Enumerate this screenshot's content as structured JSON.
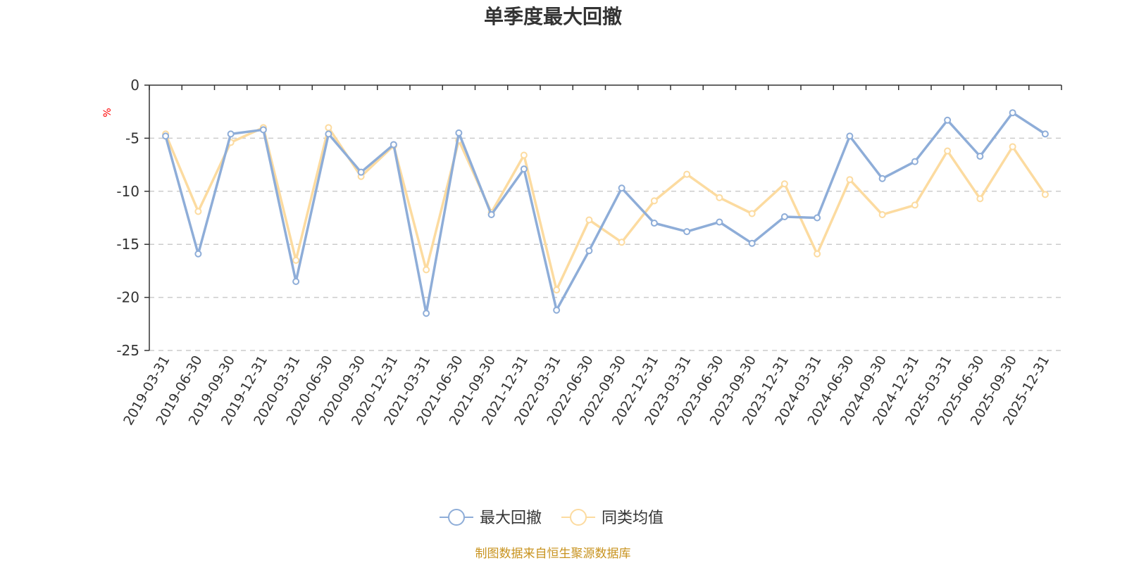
{
  "chart_data": {
    "type": "line",
    "title": "单季度最大回撤",
    "ylabel": "%",
    "ylim": [
      -25,
      0
    ],
    "yticks": [
      0,
      -5,
      -10,
      -15,
      -20,
      -25
    ],
    "grid": "horizontal-dashed",
    "legend_position": "bottom-center",
    "categories": [
      "2019-03-31",
      "2019-06-30",
      "2019-09-30",
      "2019-12-31",
      "2020-03-31",
      "2020-06-30",
      "2020-09-30",
      "2020-12-31",
      "2021-03-31",
      "2021-06-30",
      "2021-09-30",
      "2021-12-31",
      "2022-03-31",
      "2022-06-30",
      "2022-09-30",
      "2022-12-31",
      "2023-03-31",
      "2023-06-30",
      "2023-09-30",
      "2023-12-31",
      "2024-03-31",
      "2024-06-30",
      "2024-09-30",
      "2024-12-31",
      "2025-03-31",
      "2025-06-30",
      "2025-09-30",
      "2025-12-31"
    ],
    "series": [
      {
        "name": "最大回撤",
        "color": "#8eadd8",
        "values": [
          -4.8,
          -15.9,
          -4.6,
          -4.2,
          -18.5,
          -4.6,
          -8.2,
          -5.6,
          -21.5,
          -4.5,
          -12.2,
          -7.9,
          -21.2,
          -15.6,
          -9.7,
          -13.0,
          -13.8,
          -12.9,
          -14.9,
          -12.4,
          -12.5,
          -4.8,
          -8.8,
          -7.2,
          -3.3,
          -6.7,
          -2.6,
          -4.6
        ]
      },
      {
        "name": "同类均值",
        "color": "#fcdba0",
        "values": [
          -4.6,
          -11.9,
          -5.4,
          -4.0,
          -16.5,
          -4.0,
          -8.6,
          -5.7,
          -17.4,
          -5.2,
          -12.0,
          -6.6,
          -19.3,
          -12.7,
          -14.8,
          -10.9,
          -8.4,
          -10.6,
          -12.1,
          -9.3,
          -15.9,
          -8.9,
          -12.2,
          -11.3,
          -6.2,
          -10.7,
          -5.8,
          -10.3
        ]
      }
    ]
  },
  "footer": {
    "source": "制图数据来自恒生聚源数据库"
  }
}
